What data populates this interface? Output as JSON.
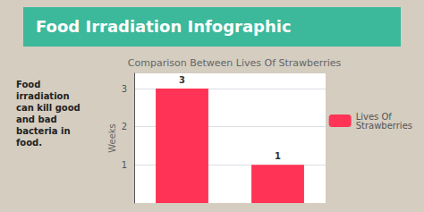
{
  "chart_data": {
    "type": "bar",
    "title": "Comparison Between Lives Of Strawberries",
    "annotations": [
      "Food Irradiation Infographic",
      "Food\nirradiation\ncan kill good\nand bad\nbacteria in\nfood."
    ],
    "categories": [
      null,
      null
    ],
    "series": [
      {
        "name": "Lives Of\nStrawberries",
        "color": "#ff3355",
        "values": [
          3,
          1
        ]
      }
    ],
    "ylabel": "Weeks",
    "ylim": [
      0,
      3.4
    ],
    "yticks": [
      1,
      2,
      3
    ],
    "grid": true,
    "legend": "right",
    "data_labels": true,
    "tick_labels": "y"
  }
}
